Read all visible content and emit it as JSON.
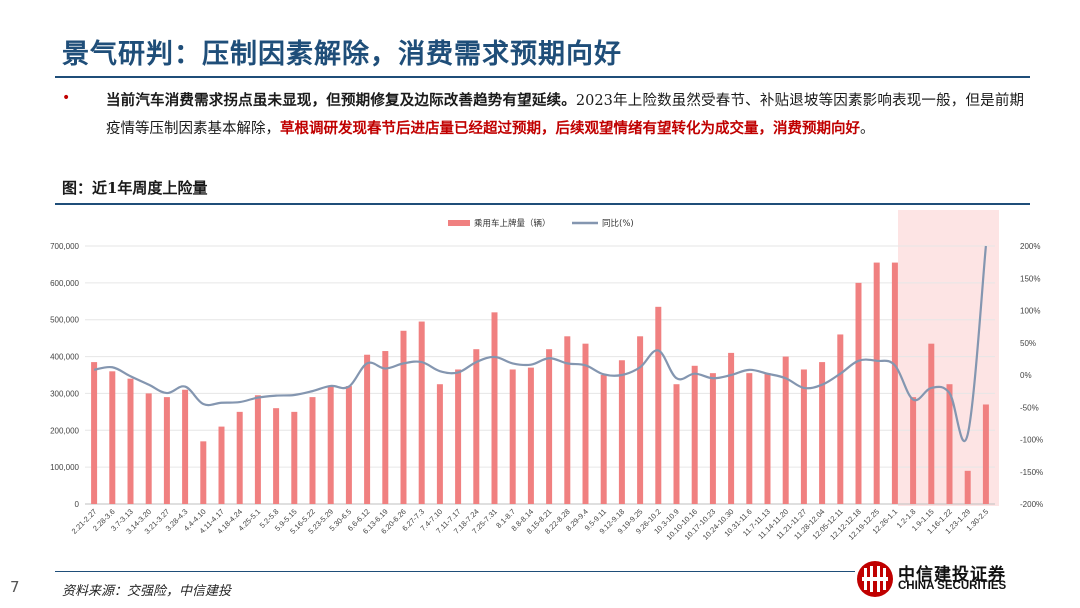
{
  "header": {
    "title": "景气研判：压制因素解除，消费需求预期向好"
  },
  "body": {
    "bullet": "•",
    "bold_text": "当前汽车消费需求拐点虽未显现，但预期修复及边际改善趋势有望延续。",
    "normal_text": "2023年上险数虽然受春节、补贴退坡等因素影响表现一般，但是前期疫情等压制因素基本解除，",
    "red_text": "草根调研发现春节后进店量已经超过预期，后续观望情绪有望转化为成交量，消费预期向好",
    "end_text": "。"
  },
  "figure": {
    "label": "图：近1年周度上险量"
  },
  "footer": {
    "page": "7",
    "source": "资料来源：交强险，中信建投",
    "logo_cn": "中信建投证券",
    "logo_en": "CHINA SECURITIES"
  },
  "colors": {
    "bar": "#f08080",
    "line": "#8496b0",
    "highlight": "#fde4e4",
    "brand": "#1f4e79",
    "accent": "#c00000"
  },
  "chart_data": {
    "type": "bar",
    "categories": [
      "2.21-2.27",
      "2.28-3.6",
      "3.7-3.13",
      "3.14-3.20",
      "3.21-3.27",
      "3.28-4.3",
      "4.4-4.10",
      "4.11-4.17",
      "4.18-4.24",
      "4.25-5.1",
      "5.2-5.8",
      "5.9-5.15",
      "5.16-5.22",
      "5.23-5.29",
      "5.30-6.5",
      "6.6-6.12",
      "6.13-6.19",
      "6.20-6.26",
      "6.27-7.3",
      "7.4-7.10",
      "7.11-7.17",
      "7.18-7.24",
      "7.25-7.31",
      "8.1-8.7",
      "8.8-8.14",
      "8.15-8.21",
      "8.22-8.28",
      "8.29-9.4",
      "9.5-9.11",
      "9.12-9.18",
      "9.19-9.25",
      "9.26-10.2",
      "10.3-10.9",
      "10.10-10.16",
      "10.17-10.23",
      "10.24-10.30",
      "10.31-11.6",
      "11.7-11.13",
      "11.14-11.20",
      "11.21-11.27",
      "11.28-12.04",
      "12.05-12.11",
      "12.12-12.18",
      "12.19-12.25",
      "12.26-1.1",
      "1.2-1.8",
      "1.9-1.15",
      "1.16-1.22",
      "1.23-1.29",
      "1.30-2.5"
    ],
    "series": [
      {
        "name": "乘用车上牌量（辆）",
        "type": "bar",
        "axis": "left",
        "values": [
          385000,
          360000,
          340000,
          300000,
          290000,
          310000,
          170000,
          210000,
          250000,
          295000,
          260000,
          250000,
          290000,
          320000,
          320000,
          405000,
          415000,
          470000,
          495000,
          325000,
          365000,
          420000,
          520000,
          365000,
          370000,
          420000,
          455000,
          435000,
          350000,
          390000,
          455000,
          535000,
          325000,
          375000,
          355000,
          410000,
          355000,
          355000,
          400000,
          365000,
          385000,
          460000,
          600000,
          655000,
          655000,
          290000,
          435000,
          325000,
          90000,
          270000
        ]
      },
      {
        "name": "同比(%)",
        "type": "line",
        "axis": "right",
        "values": [
          8,
          12,
          -2,
          -15,
          -28,
          -18,
          -45,
          -43,
          -42,
          -35,
          -32,
          -31,
          -25,
          -17,
          -18,
          18,
          10,
          18,
          20,
          6,
          4,
          20,
          28,
          18,
          16,
          26,
          18,
          15,
          1,
          0,
          12,
          38,
          -5,
          2,
          -5,
          0,
          8,
          2,
          -5,
          -20,
          -15,
          2,
          22,
          22,
          15,
          -38,
          -20,
          -28,
          -92,
          200
        ]
      }
    ],
    "left_axis": {
      "ylim": [
        0,
        700000
      ],
      "ticks": [
        "0",
        "100,000",
        "200,000",
        "300,000",
        "400,000",
        "500,000",
        "600,000",
        "700,000"
      ]
    },
    "right_axis": {
      "ylim": [
        -200,
        200
      ],
      "ticks": [
        "-200%",
        "-150%",
        "-100%",
        "-50%",
        "0%",
        "50%",
        "100%",
        "150%",
        "200%"
      ]
    },
    "legend_position": "top-center",
    "highlight_region": [
      "1.2-1.8",
      "1.30-2.5"
    ],
    "grid": "horizontal"
  }
}
